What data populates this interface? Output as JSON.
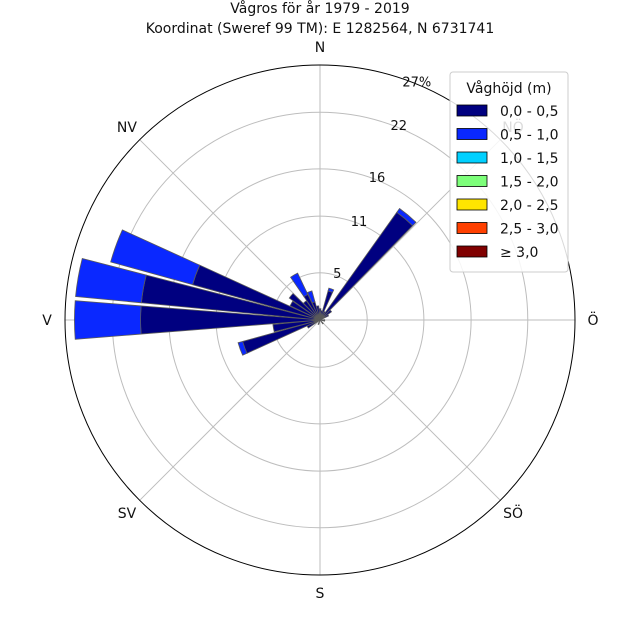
{
  "chart_data": {
    "type": "windrose",
    "title": "Vågros för år 1979 - 2019",
    "subtitle": "Koordinat (Sweref 99 TM): E 1282564, N 6731741",
    "direction_labels": [
      "N",
      "NÖ",
      "Ö",
      "SÖ",
      "S",
      "SV",
      "V",
      "NV"
    ],
    "radial_ticks": [
      "5",
      "11",
      "16",
      "22",
      "27%"
    ],
    "radial_tick_values": [
      5,
      11,
      16,
      22,
      27
    ],
    "rmax": 27,
    "sector_width_deg": 10,
    "legend": {
      "title": "Våghöjd (m)",
      "placement": "top-right",
      "entries": [
        "0,0 - 0,5",
        "0,5 - 1,0",
        "1,0 - 1,5",
        "1,5 - 2,0",
        "2,0 - 2,5",
        "2,5 - 3,0",
        "≥ 3,0"
      ],
      "colors": [
        "#000080",
        "#0a28ff",
        "#00d0ff",
        "#7dff7a",
        "#ffe500",
        "#ff4000",
        "#800000"
      ]
    },
    "sectors": [
      {
        "direction_deg": 0,
        "values": [
          1.2,
          0
        ]
      },
      {
        "direction_deg": 10,
        "values": [
          1.0,
          0
        ]
      },
      {
        "direction_deg": 20,
        "values": [
          3.2,
          0.3
        ]
      },
      {
        "direction_deg": 30,
        "values": [
          1.0,
          0
        ]
      },
      {
        "direction_deg": 40,
        "values": [
          14.0,
          0.5
        ]
      },
      {
        "direction_deg": 50,
        "values": [
          1.5,
          0
        ]
      },
      {
        "direction_deg": 60,
        "values": [
          1.0,
          0
        ]
      },
      {
        "direction_deg": 290,
        "values": [
          14.0,
          9.0
        ]
      },
      {
        "direction_deg": 280,
        "values": [
          19.0,
          7.0
        ]
      },
      {
        "direction_deg": 270,
        "values": [
          19.0,
          7.0
        ]
      },
      {
        "direction_deg": 250,
        "values": [
          8.5,
          0.5
        ]
      },
      {
        "direction_deg": 260,
        "values": [
          5.0,
          0
        ]
      },
      {
        "direction_deg": 300,
        "values": [
          3.5,
          0
        ]
      },
      {
        "direction_deg": 310,
        "values": [
          4.0,
          0
        ]
      },
      {
        "direction_deg": 320,
        "values": [
          2.5,
          0
        ]
      },
      {
        "direction_deg": 330,
        "values": [
          3.0,
          2.5
        ]
      },
      {
        "direction_deg": 340,
        "values": [
          2.0,
          1.2
        ]
      },
      {
        "direction_deg": 350,
        "values": [
          1.5,
          0
        ]
      },
      {
        "direction_deg": 240,
        "values": [
          1.5,
          0
        ]
      },
      {
        "direction_deg": 200,
        "values": [
          0.5,
          0
        ]
      },
      {
        "direction_deg": 100,
        "values": [
          0.5,
          0
        ]
      },
      {
        "direction_deg": 140,
        "values": [
          0.5,
          0
        ]
      },
      {
        "direction_deg": 90,
        "values": [
          0.5,
          0
        ]
      }
    ]
  }
}
